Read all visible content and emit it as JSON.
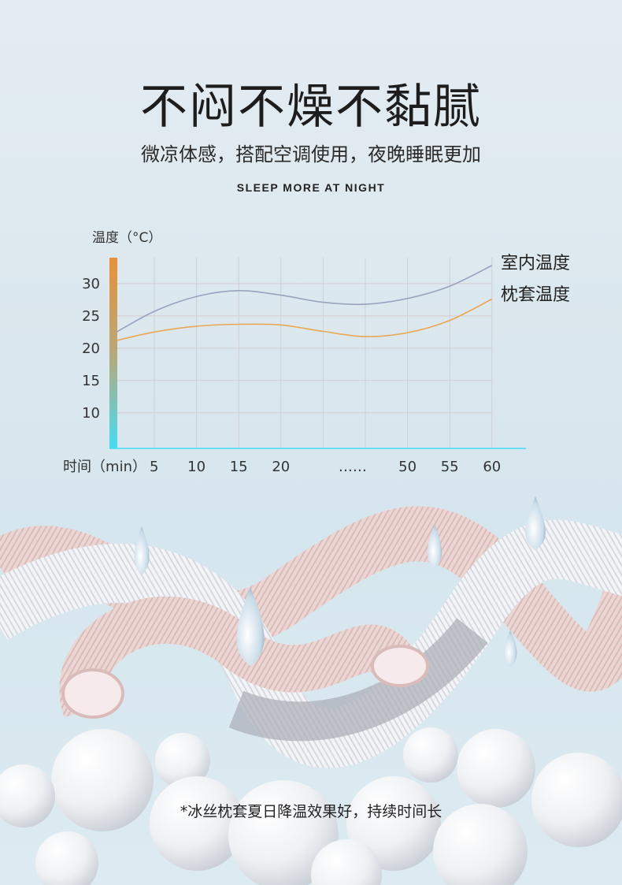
{
  "header": {
    "title": "不闷不燥不黏腻",
    "subtitle": "微凉体感，搭配空调使用，夜晚睡眠更加",
    "english": "SLEEP MORE AT NIGHT"
  },
  "chart_data": {
    "type": "line",
    "ylabel": "温度（°C）",
    "xlabel": "时间（min）",
    "y_ticks": [
      30,
      25,
      20,
      15,
      10
    ],
    "ylim": [
      4.5,
      34
    ],
    "x_tick_labels": [
      "5",
      "10",
      "15",
      "20",
      "……",
      "50",
      "55",
      "60"
    ],
    "x_points": [
      "0",
      "5",
      "10",
      "15",
      "20",
      "25",
      "……",
      "50",
      "55",
      "60"
    ],
    "grid": true,
    "legend_position": "right",
    "series": [
      {
        "name": "室内温度",
        "color": "#9aa3bd",
        "values": [
          22.5,
          25.7,
          28.0,
          28.9,
          28.2,
          27.1,
          26.8,
          27.7,
          29.6,
          32.8
        ]
      },
      {
        "name": "枕套温度",
        "color": "#e8a857",
        "values": [
          21.2,
          22.5,
          23.4,
          23.7,
          23.6,
          22.6,
          21.8,
          22.4,
          24.3,
          27.6
        ]
      }
    ],
    "axis_gradient": [
      "#e8903a",
      "#45dcf5"
    ]
  },
  "footer": {
    "note": "*冰丝枕套夏日降温效果好，持续时间长"
  }
}
